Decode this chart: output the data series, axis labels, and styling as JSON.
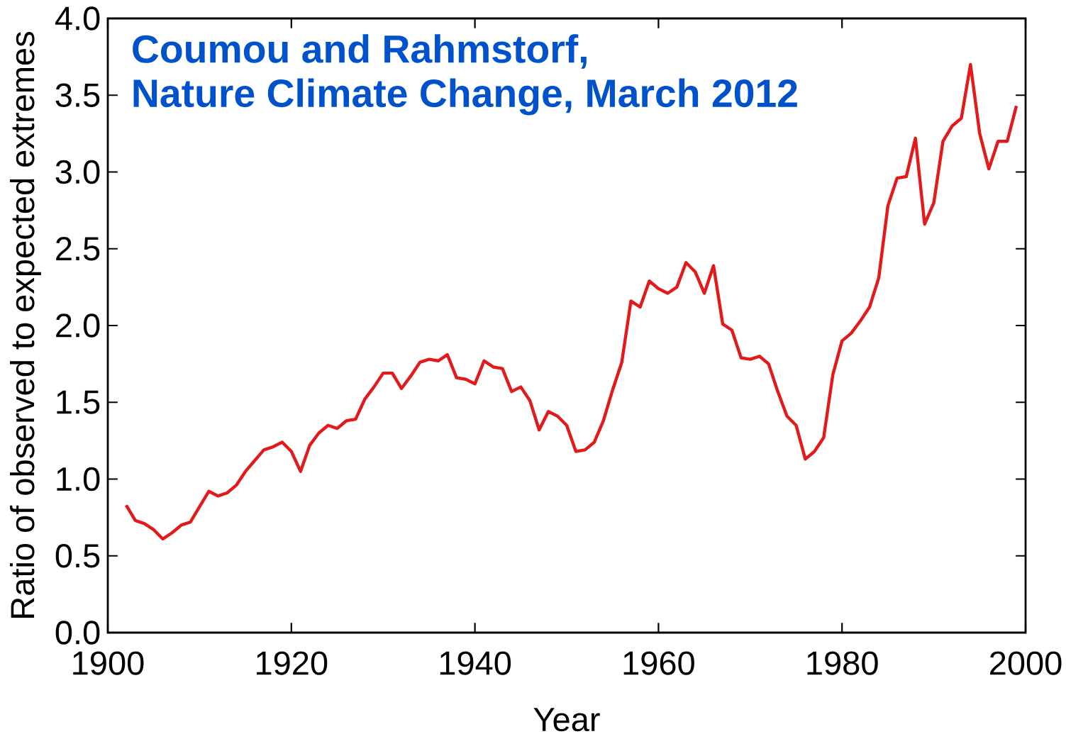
{
  "chart_data": {
    "type": "line",
    "xlabel": "Year",
    "ylabel": "Ratio of observed to expected extremes",
    "annotations": [
      "Coumou and Rahmstorf,",
      "Nature Climate Change, March 2012"
    ],
    "x": [
      1902,
      1903,
      1904,
      1905,
      1906,
      1907,
      1908,
      1909,
      1910,
      1911,
      1912,
      1913,
      1914,
      1915,
      1916,
      1917,
      1918,
      1919,
      1920,
      1921,
      1922,
      1923,
      1924,
      1925,
      1926,
      1927,
      1928,
      1929,
      1930,
      1931,
      1932,
      1933,
      1934,
      1935,
      1936,
      1937,
      1938,
      1939,
      1940,
      1941,
      1942,
      1943,
      1944,
      1945,
      1946,
      1947,
      1948,
      1949,
      1950,
      1951,
      1952,
      1953,
      1954,
      1955,
      1956,
      1957,
      1958,
      1959,
      1960,
      1961,
      1962,
      1963,
      1964,
      1965,
      1966,
      1967,
      1968,
      1969,
      1970,
      1971,
      1972,
      1973,
      1974,
      1975,
      1976,
      1977,
      1978,
      1979,
      1980,
      1981,
      1982,
      1983,
      1984,
      1985,
      1986,
      1987,
      1988,
      1989,
      1990,
      1991,
      1992,
      1993,
      1994,
      1995,
      1996,
      1997,
      1998,
      1999
    ],
    "series": [
      {
        "color": "#e31a1c",
        "values": [
          0.83,
          0.73,
          0.71,
          0.67,
          0.61,
          0.65,
          0.7,
          0.72,
          0.82,
          0.92,
          0.89,
          0.91,
          0.96,
          1.05,
          1.12,
          1.19,
          1.21,
          1.24,
          1.18,
          1.05,
          1.22,
          1.3,
          1.35,
          1.33,
          1.38,
          1.39,
          1.52,
          1.6,
          1.69,
          1.69,
          1.59,
          1.67,
          1.76,
          1.78,
          1.77,
          1.81,
          1.66,
          1.65,
          1.62,
          1.77,
          1.73,
          1.72,
          1.57,
          1.6,
          1.51,
          1.32,
          1.44,
          1.41,
          1.35,
          1.18,
          1.19,
          1.24,
          1.38,
          1.58,
          1.76,
          2.16,
          2.12,
          2.29,
          2.24,
          2.21,
          2.25,
          2.41,
          2.35,
          2.21,
          2.39,
          2.01,
          1.97,
          1.79,
          1.78,
          1.8,
          1.75,
          1.57,
          1.41,
          1.35,
          1.13,
          1.18,
          1.27,
          1.68,
          1.9,
          1.95,
          2.03,
          2.12,
          2.31,
          2.78,
          2.96,
          2.97,
          3.22,
          2.66,
          2.8,
          3.2,
          3.3,
          3.35,
          3.7,
          3.25,
          3.02,
          3.2,
          3.2,
          3.43
        ]
      }
    ],
    "xlim": [
      1900,
      2000
    ],
    "xticks": [
      1900,
      1920,
      1940,
      1960,
      1980,
      2000
    ],
    "ylim": [
      0,
      4
    ],
    "yticks": [
      {
        "value": 0,
        "label": "0.0"
      },
      0.5,
      {
        "value": 1,
        "label": "1.0"
      },
      1.5,
      {
        "value": 2,
        "label": "2.0"
      },
      2.5,
      {
        "value": 3,
        "label": "3.0"
      },
      3.5,
      {
        "value": 4,
        "label": "4.0"
      }
    ],
    "marker": "none",
    "line_style": "solid"
  }
}
